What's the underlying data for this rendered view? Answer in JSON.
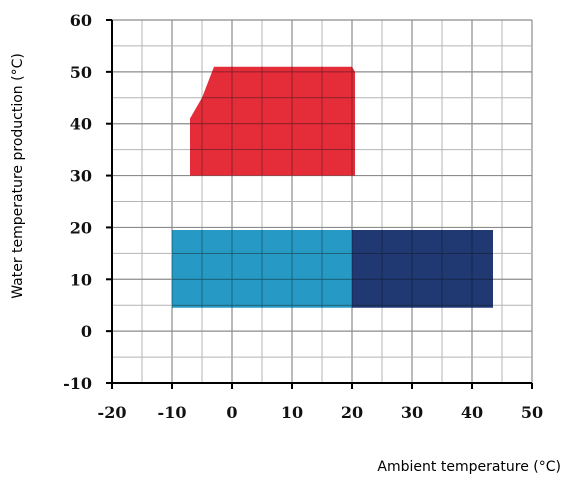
{
  "chart_data": {
    "type": "area",
    "title": "",
    "xlabel": "Ambient temperature (°C)",
    "ylabel": "Water temperature production (°C)",
    "xlim": [
      -20,
      50
    ],
    "ylim": [
      -10,
      60
    ],
    "x_ticks": [
      -20,
      -10,
      0,
      10,
      20,
      30,
      40,
      50
    ],
    "y_ticks": [
      -10,
      0,
      10,
      20,
      30,
      40,
      50,
      60
    ],
    "x_tick_labels": [
      "-20",
      "-10",
      "0",
      "10",
      "20",
      "30",
      "40",
      "50"
    ],
    "y_tick_labels": [
      "-10",
      "0",
      "10",
      "20",
      "30",
      "40",
      "50",
      "60"
    ],
    "grid": true,
    "minor_grid_step": 5,
    "legend": "none",
    "regions": [
      {
        "color": "#e31d2b",
        "points": [
          [
            -7,
            30
          ],
          [
            -7,
            41
          ],
          [
            -5,
            45
          ],
          [
            -3,
            51
          ],
          [
            20,
            51
          ],
          [
            20.5,
            50
          ],
          [
            20.5,
            30
          ]
        ]
      },
      {
        "color": "#1592bf",
        "points": [
          [
            -10,
            4.5
          ],
          [
            -10,
            19.5
          ],
          [
            20,
            19.5
          ],
          [
            20,
            4.5
          ]
        ]
      },
      {
        "color": "#0f2a68",
        "points": [
          [
            20,
            4.5
          ],
          [
            20,
            19.5
          ],
          [
            43.5,
            19.5
          ],
          [
            43.5,
            4.5
          ]
        ]
      }
    ]
  }
}
